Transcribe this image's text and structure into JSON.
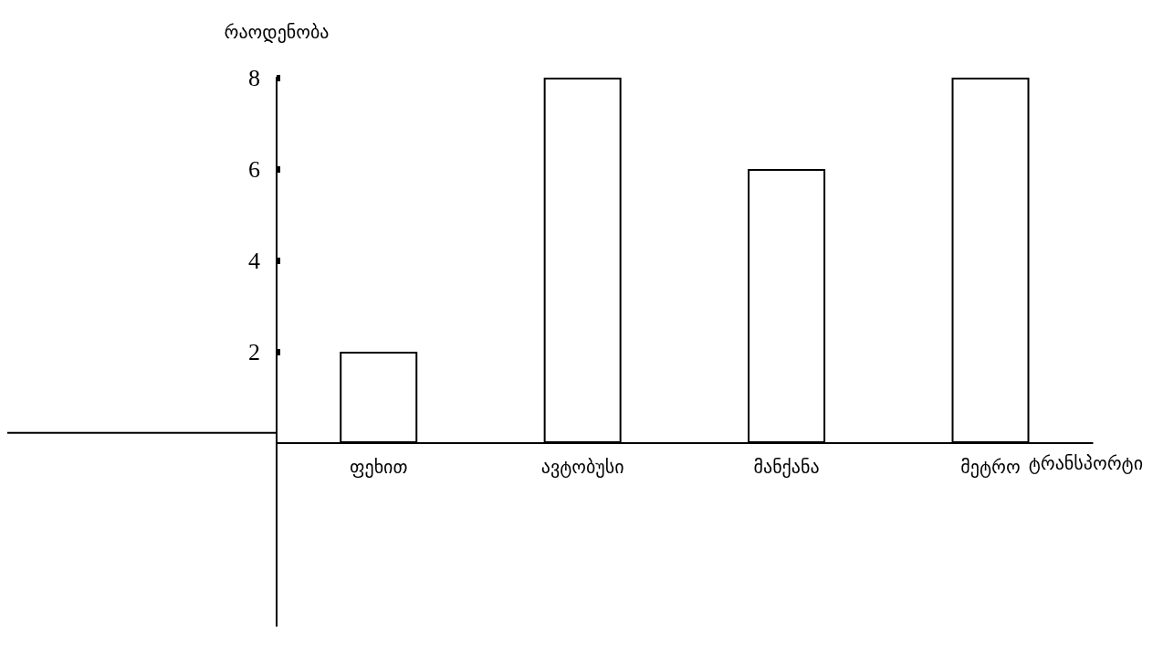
{
  "chart_data": {
    "type": "bar",
    "xlabel": "ტრანსპორტი",
    "ylabel": "რაოდენობა",
    "categories": [
      "ფეხით",
      "ავტობუსი",
      "მანქანა",
      "მეტრო"
    ],
    "values": [
      2,
      8,
      6,
      8
    ],
    "color": "#ffffff",
    "ylim": [
      -4,
      8
    ],
    "yticks": [
      2,
      4,
      6,
      8
    ],
    "grid": false
  }
}
